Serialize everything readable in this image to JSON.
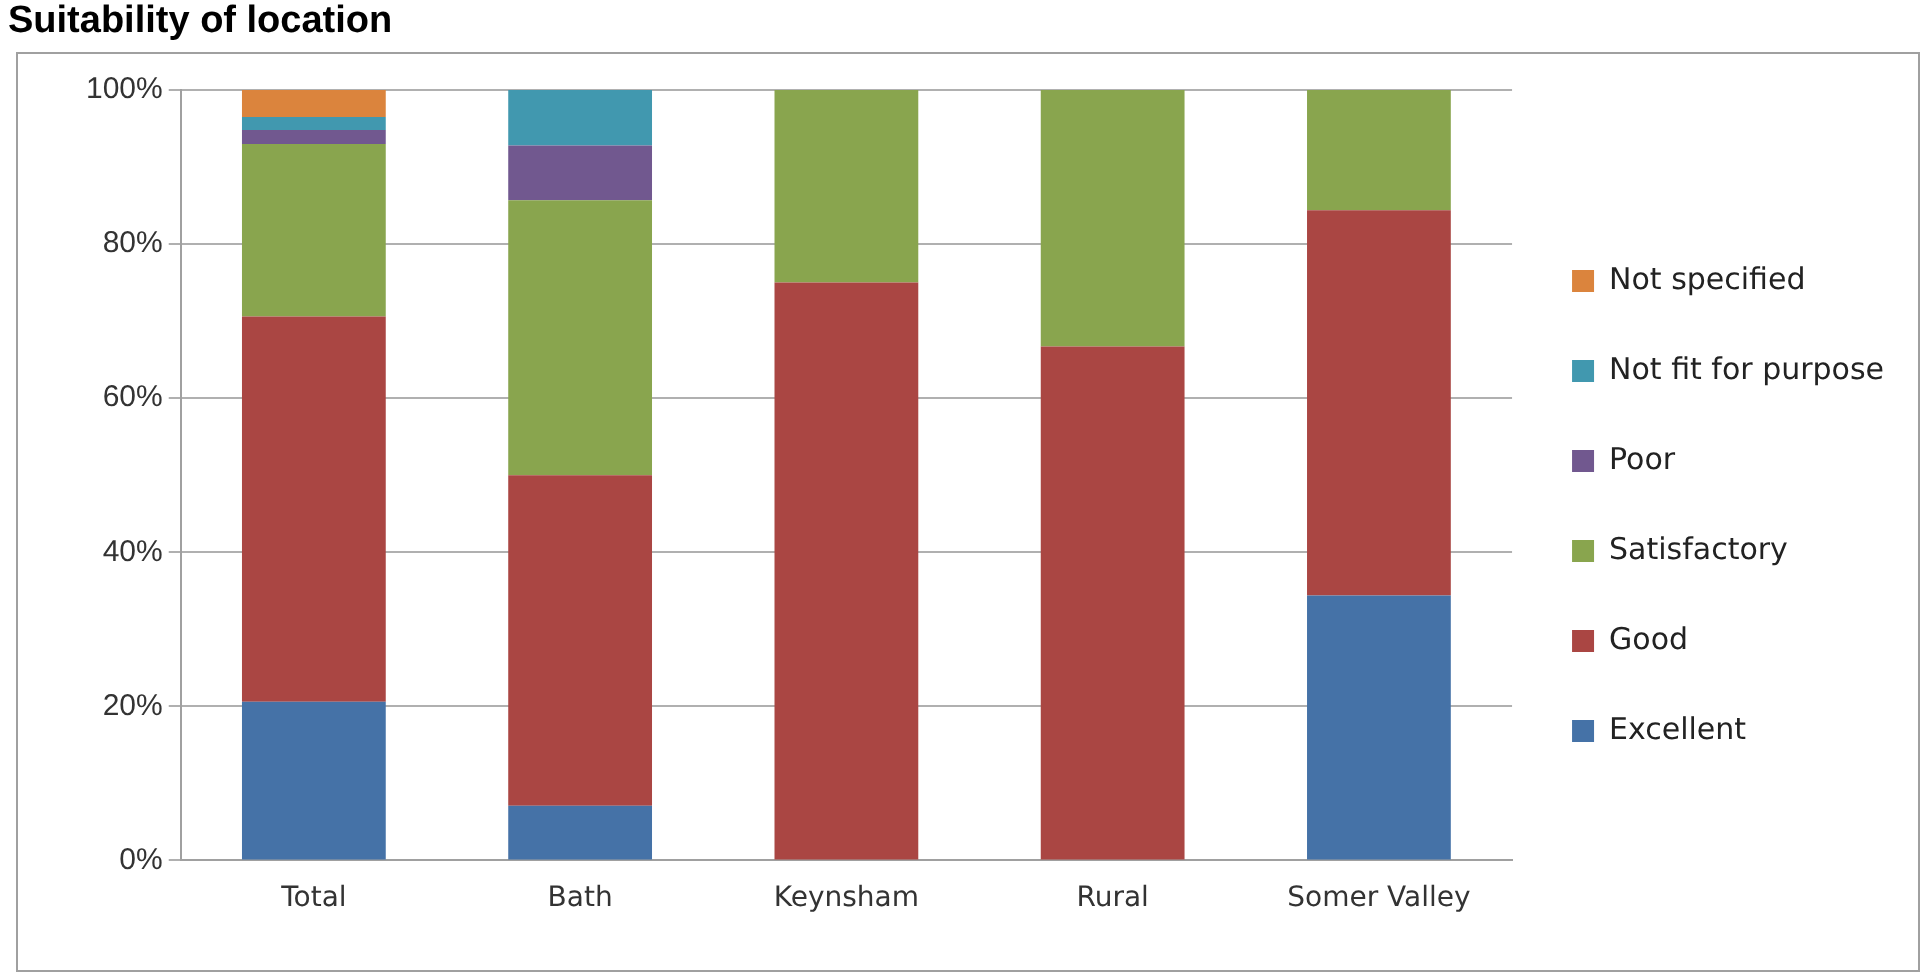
{
  "chart_data": {
    "type": "bar",
    "title": "Suitability of location",
    "categories": [
      "Total",
      "Bath",
      "Keynsham",
      "Rural",
      "Somer Valley"
    ],
    "stacked": true,
    "series": [
      {
        "name": "Excellent",
        "color": "#4572a7",
        "values": [
          20.6,
          7.1,
          0,
          0,
          34.4
        ]
      },
      {
        "name": "Good",
        "color": "#aa4643",
        "values": [
          50,
          42.9,
          75,
          66.7,
          50
        ]
      },
      {
        "name": "Satisfactory",
        "color": "#89a54e",
        "values": [
          22.4,
          35.7,
          25,
          33.3,
          15.6
        ]
      },
      {
        "name": "Poor",
        "color": "#71588f",
        "values": [
          1.8,
          7.1,
          0,
          0,
          0
        ]
      },
      {
        "name": "Not fit for purpose",
        "color": "#4198af",
        "values": [
          1.7,
          7.2,
          0,
          0,
          0
        ]
      },
      {
        "name": "Not specified",
        "color": "#db843d",
        "values": [
          3.5,
          0,
          0,
          0,
          0
        ]
      }
    ],
    "ylim": [
      0,
      100
    ],
    "yticks": [
      {
        "value": 0,
        "label": "0%"
      },
      {
        "value": 20,
        "label": "20%"
      },
      {
        "value": 40,
        "label": "40%"
      },
      {
        "value": 60,
        "label": "60%"
      },
      {
        "value": 80,
        "label": "80%"
      },
      {
        "value": 100,
        "label": "100%"
      }
    ],
    "grid": "y",
    "legend": "right"
  }
}
